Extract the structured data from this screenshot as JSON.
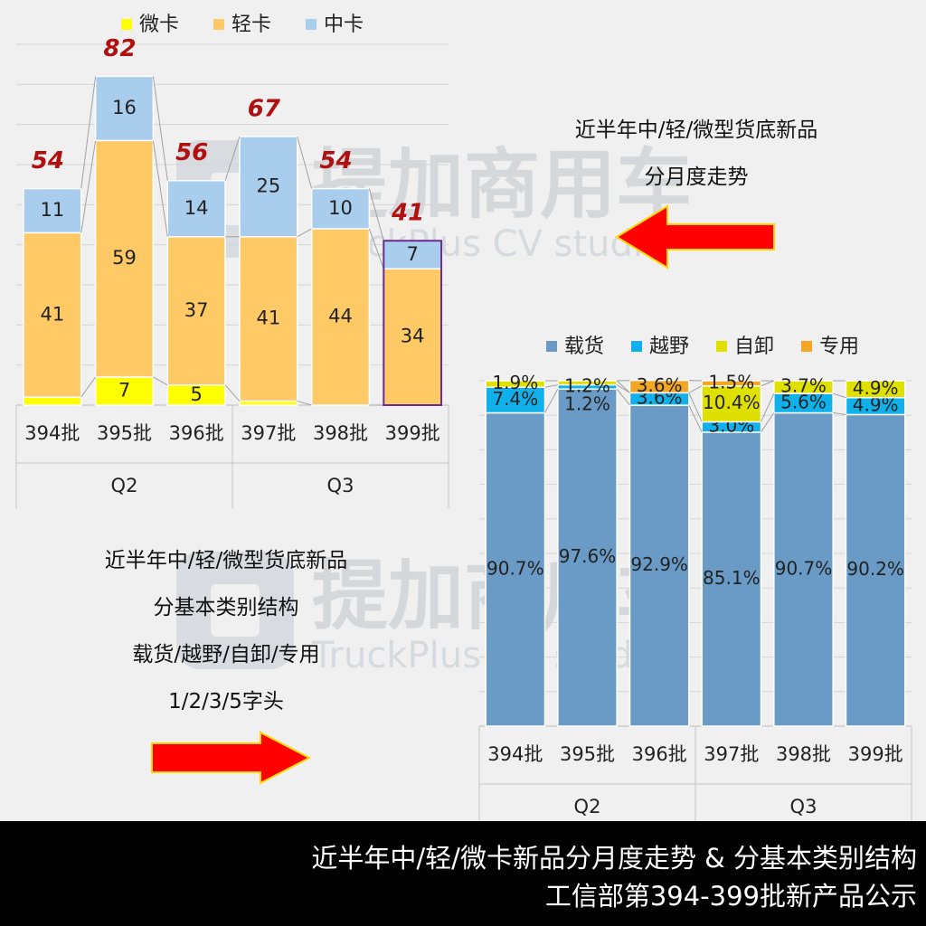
{
  "chart_data": [
    {
      "type": "bar",
      "stacked": true,
      "categories": [
        "394批",
        "395批",
        "396批",
        "397批",
        "398批",
        "399批"
      ],
      "groups": [
        {
          "label": "Q2",
          "categories": [
            "394批",
            "395批",
            "396批"
          ]
        },
        {
          "label": "Q3",
          "categories": [
            "397批",
            "398批",
            "399批"
          ]
        }
      ],
      "series": [
        {
          "name": "微卡",
          "color": "#ffff00",
          "values": [
            2,
            7,
            5,
            1,
            0,
            0
          ]
        },
        {
          "name": "轻卡",
          "color": "#ffc966",
          "values": [
            41,
            59,
            37,
            41,
            44,
            34
          ]
        },
        {
          "name": "中卡",
          "color": "#a9cdec",
          "values": [
            11,
            16,
            14,
            25,
            10,
            7
          ]
        }
      ],
      "segment_labels": [
        [
          "2",
          "41",
          "11"
        ],
        [
          "7",
          "59",
          "16"
        ],
        [
          "5",
          "37",
          "14"
        ],
        [
          "",
          "41",
          "25"
        ],
        [
          "",
          "44",
          "10"
        ],
        [
          "",
          "34",
          "7"
        ]
      ],
      "totals": [
        54,
        82,
        56,
        67,
        54,
        41
      ],
      "ylim": [
        0,
        90
      ],
      "grid": true,
      "legend": "top"
    },
    {
      "type": "bar",
      "stacked": true,
      "percent": true,
      "categories": [
        "394批",
        "395批",
        "396批",
        "397批",
        "398批",
        "399批"
      ],
      "groups": [
        {
          "label": "Q2",
          "categories": [
            "394批",
            "395批",
            "396批"
          ]
        },
        {
          "label": "Q3",
          "categories": [
            "397批",
            "398批",
            "399批"
          ]
        }
      ],
      "series": [
        {
          "name": "载货",
          "color": "#6a9bc6",
          "values": [
            90.7,
            97.6,
            92.9,
            85.1,
            90.7,
            90.2
          ]
        },
        {
          "name": "越野",
          "color": "#10b0eb",
          "values": [
            7.4,
            1.2,
            3.6,
            3.0,
            5.6,
            4.9
          ]
        },
        {
          "name": "自卸",
          "color": "#e0e000",
          "values": [
            1.9,
            1.2,
            0,
            10.4,
            3.7,
            4.9
          ]
        },
        {
          "name": "专用",
          "color": "#f5a623",
          "values": [
            0,
            0,
            3.6,
            1.5,
            0,
            0
          ]
        }
      ],
      "segment_labels": [
        [
          "90.7%",
          "7.4%",
          "1.9%",
          ""
        ],
        [
          "97.6%",
          "1.2%",
          "1.2%",
          ""
        ],
        [
          "92.9%",
          "3.6%",
          "",
          "3.6%"
        ],
        [
          "85.1%",
          "3.0%",
          "10.4%",
          "1.5%"
        ],
        [
          "90.7%",
          "5.6%",
          "3.7%",
          ""
        ],
        [
          "90.2%",
          "4.9%",
          "4.9%",
          ""
        ]
      ],
      "ylim": [
        0,
        100
      ],
      "grid": true,
      "legend": "top"
    }
  ],
  "notes": {
    "trend": [
      "近半年中/轻/微型货底新品",
      "分月度走势"
    ],
    "structure": [
      "近半年中/轻/微型货底新品",
      "分基本类别结构",
      "载货/越野/自卸/专用",
      "1/2/3/5字头"
    ]
  },
  "watermark": {
    "cn": "提加商用车",
    "en": "TruckPlus CV studio"
  },
  "footer": {
    "line1": "近半年中/轻/微卡新品分月度走势 & 分基本类别结构",
    "line2": "工信部第394-399批新产品公示"
  },
  "colors": {
    "arrow": "#ff0000",
    "arrow_border": "#ffd700",
    "total_label": "#b01010",
    "highlight_border": "#6a2c91"
  }
}
